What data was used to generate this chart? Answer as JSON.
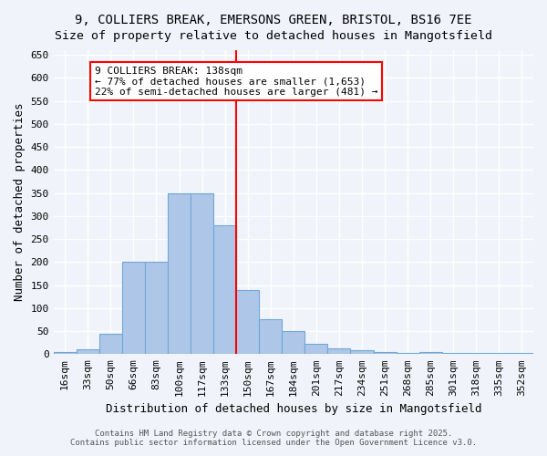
{
  "title1": "9, COLLIERS BREAK, EMERSONS GREEN, BRISTOL, BS16 7EE",
  "title2": "Size of property relative to detached houses in Mangotsfield",
  "xlabel": "Distribution of detached houses by size in Mangotsfield",
  "ylabel": "Number of detached properties",
  "bin_labels": [
    "16sqm",
    "33sqm",
    "50sqm",
    "66sqm",
    "83sqm",
    "100sqm",
    "117sqm",
    "133sqm",
    "150sqm",
    "167sqm",
    "184sqm",
    "201sqm",
    "217sqm",
    "234sqm",
    "251sqm",
    "268sqm",
    "285sqm",
    "301sqm",
    "318sqm",
    "335sqm",
    "352sqm"
  ],
  "bar_values": [
    5,
    10,
    45,
    200,
    200,
    350,
    350,
    280,
    140,
    75,
    50,
    22,
    13,
    8,
    5,
    3,
    5,
    3,
    3,
    3,
    3
  ],
  "bar_color": "#aec6e8",
  "bar_edge_color": "#6fa8d6",
  "vline_x": 7.5,
  "vline_color": "red",
  "annotation_text": "9 COLLIERS BREAK: 138sqm\n← 77% of detached houses are smaller (1,653)\n22% of semi-detached houses are larger (481) →",
  "annotation_box_color": "white",
  "annotation_edge_color": "red",
  "ylim": [
    0,
    660
  ],
  "yticks": [
    0,
    50,
    100,
    150,
    200,
    250,
    300,
    350,
    400,
    450,
    500,
    550,
    600,
    650
  ],
  "footer1": "Contains HM Land Registry data © Crown copyright and database right 2025.",
  "footer2": "Contains public sector information licensed under the Open Government Licence v3.0.",
  "bg_color": "#f0f4fa",
  "grid_color": "white",
  "title_fontsize": 10,
  "axis_label_fontsize": 9,
  "tick_fontsize": 8,
  "annotation_fontsize": 8
}
